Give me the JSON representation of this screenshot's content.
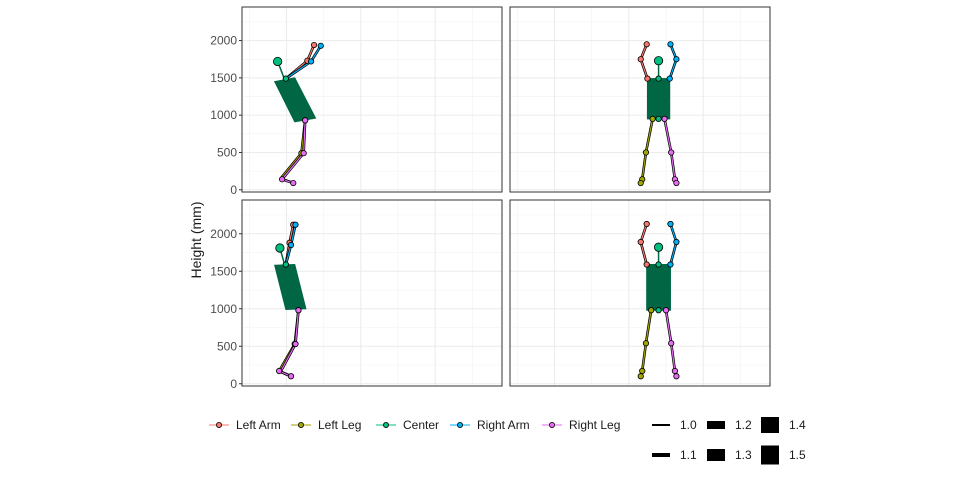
{
  "chart_data": {
    "type": "scatter",
    "ylabel": "Height (mm)",
    "ylim": [
      -30,
      2450
    ],
    "xlim": [
      -300,
      1450
    ],
    "y_ticks": [
      0,
      500,
      1000,
      1500,
      2000
    ],
    "x_gridlines": [
      0,
      500,
      1000
    ],
    "grid": true,
    "legend_position": "bottom",
    "colors": {
      "Left Arm": "#F8766D",
      "Left Leg": "#A3A500",
      "Center": "#00BF7D",
      "Right Arm": "#00B0F6",
      "Right Leg": "#E76BF3",
      "torso": "#006644"
    },
    "series": [
      {
        "name": "Left Arm"
      },
      {
        "name": "Left Leg"
      },
      {
        "name": "Center"
      },
      {
        "name": "Right Arm"
      },
      {
        "name": "Right Leg"
      }
    ],
    "size_legend": [
      "1.0",
      "1.1",
      "1.2",
      "1.3",
      "1.4",
      "1.5"
    ],
    "panels": [
      {
        "head": [
          -60,
          1720
        ],
        "torso": [
          [
            -80,
            1450
          ],
          [
            55,
            1500
          ],
          [
            195,
            960
          ],
          [
            55,
            910
          ]
        ],
        "segments": {
          "Left Arm": [
            [
              -5,
              1490
            ],
            [
              140,
              1730
            ],
            [
              185,
              1940
            ]
          ],
          "Right Arm": [
            [
              -5,
              1490
            ],
            [
              165,
              1720
            ],
            [
              230,
              1930
            ]
          ],
          "Left Leg": [
            [
              125,
              930
            ],
            [
              100,
              490
            ],
            [
              -40,
              150
            ],
            [
              40,
              95
            ]
          ],
          "Right Leg": [
            [
              125,
              930
            ],
            [
              115,
              490
            ],
            [
              -30,
              140
            ],
            [
              45,
              90
            ]
          ]
        },
        "points": {
          "Left Arm": [
            [
              140,
              1730
            ],
            [
              185,
              1940
            ]
          ],
          "Right Arm": [
            [
              165,
              1720
            ],
            [
              230,
              1930
            ]
          ],
          "Center": [
            [
              -5,
              1490
            ],
            [
              125,
              930
            ]
          ],
          "Left Leg": [
            [
              100,
              490
            ]
          ],
          "Right Leg": [
            [
              125,
              930
            ],
            [
              115,
              490
            ],
            [
              -30,
              140
            ],
            [
              45,
              90
            ]
          ]
        }
      },
      {
        "head": [
          700,
          1730
        ],
        "torso": [
          [
            625,
            1490
          ],
          [
            775,
            1490
          ],
          [
            775,
            950
          ],
          [
            625,
            950
          ]
        ],
        "segments": {
          "Left Arm": [
            [
              625,
              1490
            ],
            [
              580,
              1750
            ],
            [
              620,
              1950
            ]
          ],
          "Right Arm": [
            [
              775,
              1490
            ],
            [
              820,
              1750
            ],
            [
              780,
              1950
            ]
          ],
          "Left Leg": [
            [
              660,
              950
            ],
            [
              615,
              500
            ],
            [
              590,
              140
            ],
            [
              580,
              90
            ]
          ],
          "Right Leg": [
            [
              740,
              950
            ],
            [
              785,
              500
            ],
            [
              810,
              140
            ],
            [
              820,
              90
            ]
          ]
        },
        "points": {
          "Left Arm": [
            [
              625,
              1490
            ],
            [
              580,
              1750
            ],
            [
              620,
              1950
            ]
          ],
          "Right Arm": [
            [
              775,
              1490
            ],
            [
              820,
              1750
            ],
            [
              780,
              1950
            ]
          ],
          "Center": [
            [
              700,
              1490
            ],
            [
              700,
              950
            ]
          ],
          "Left Leg": [
            [
              660,
              950
            ],
            [
              615,
              500
            ],
            [
              590,
              140
            ],
            [
              580,
              90
            ]
          ],
          "Right Leg": [
            [
              740,
              950
            ],
            [
              785,
              500
            ],
            [
              810,
              140
            ],
            [
              820,
              90
            ]
          ]
        }
      },
      {
        "head": [
          -45,
          1810
        ],
        "torso": [
          [
            -80,
            1580
          ],
          [
            55,
            1590
          ],
          [
            130,
            1000
          ],
          [
            -5,
            990
          ]
        ],
        "segments": {
          "Left Arm": [
            [
              -5,
              1590
            ],
            [
              20,
              1880
            ],
            [
              45,
              2120
            ]
          ],
          "Right Arm": [
            [
              -5,
              1590
            ],
            [
              30,
              1850
            ],
            [
              60,
              2120
            ]
          ],
          "Left Leg": [
            [
              80,
              980
            ],
            [
              55,
              530
            ],
            [
              -50,
              170
            ],
            [
              30,
              100
            ]
          ],
          "Right Leg": [
            [
              80,
              980
            ],
            [
              60,
              530
            ],
            [
              -40,
              160
            ],
            [
              35,
              95
            ]
          ]
        },
        "points": {
          "Left Arm": [
            [
              20,
              1880
            ],
            [
              45,
              2120
            ]
          ],
          "Right Arm": [
            [
              30,
              1850
            ],
            [
              60,
              2120
            ]
          ],
          "Center": [
            [
              -5,
              1590
            ],
            [
              80,
              980
            ]
          ],
          "Left Leg": [
            [
              55,
              530
            ]
          ],
          "Right Leg": [
            [
              80,
              980
            ],
            [
              60,
              530
            ],
            [
              -50,
              170
            ],
            [
              30,
              100
            ]
          ]
        }
      },
      {
        "head": [
          700,
          1820
        ],
        "torso": [
          [
            620,
            1590
          ],
          [
            780,
            1590
          ],
          [
            780,
            980
          ],
          [
            620,
            980
          ]
        ],
        "segments": {
          "Left Arm": [
            [
              620,
              1590
            ],
            [
              580,
              1890
            ],
            [
              620,
              2130
            ]
          ],
          "Right Arm": [
            [
              780,
              1590
            ],
            [
              820,
              1890
            ],
            [
              780,
              2130
            ]
          ],
          "Left Leg": [
            [
              650,
              980
            ],
            [
              615,
              540
            ],
            [
              590,
              170
            ],
            [
              580,
              100
            ]
          ],
          "Right Leg": [
            [
              750,
              980
            ],
            [
              785,
              540
            ],
            [
              810,
              170
            ],
            [
              820,
              100
            ]
          ]
        },
        "points": {
          "Left Arm": [
            [
              620,
              1590
            ],
            [
              580,
              1890
            ],
            [
              620,
              2130
            ]
          ],
          "Right Arm": [
            [
              780,
              1590
            ],
            [
              820,
              1890
            ],
            [
              780,
              2130
            ]
          ],
          "Center": [
            [
              700,
              1590
            ],
            [
              700,
              980
            ]
          ],
          "Left Leg": [
            [
              650,
              980
            ],
            [
              615,
              540
            ],
            [
              590,
              170
            ],
            [
              580,
              100
            ]
          ],
          "Right Leg": [
            [
              750,
              980
            ],
            [
              785,
              540
            ],
            [
              810,
              170
            ],
            [
              820,
              100
            ]
          ]
        }
      }
    ]
  }
}
